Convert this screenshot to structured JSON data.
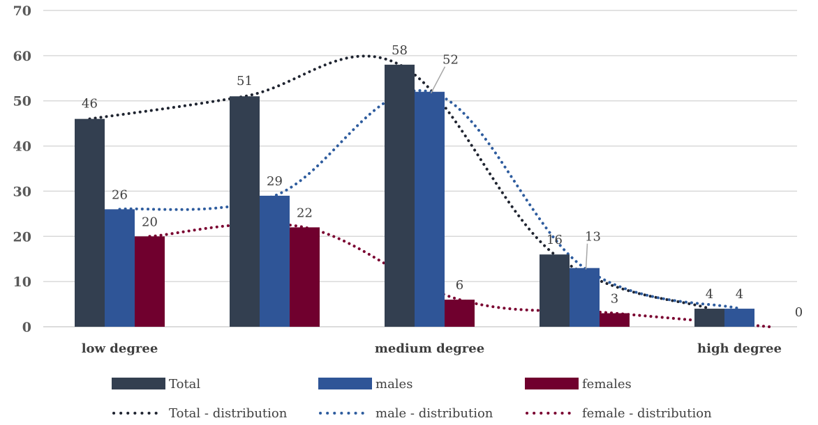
{
  "chart_data": {
    "type": "bar",
    "title": "",
    "xlabel": "",
    "ylabel": "",
    "ylim": [
      0,
      70
    ],
    "yticks": [
      0,
      10,
      20,
      30,
      40,
      50,
      60,
      70
    ],
    "grid": true,
    "legend_position": "bottom",
    "categories": [
      "low degree",
      "",
      "medium degree",
      "",
      "high degree"
    ],
    "series": [
      {
        "name": "Total",
        "kind": "bar",
        "color": "#333f50",
        "values": [
          46,
          51,
          58,
          16,
          4
        ]
      },
      {
        "name": "males",
        "kind": "bar",
        "color": "#2f5597",
        "values": [
          26,
          29,
          52,
          13,
          4
        ]
      },
      {
        "name": "females",
        "kind": "bar",
        "color": "#70002e",
        "values": [
          20,
          22,
          6,
          3,
          0
        ]
      }
    ],
    "trendlines": [
      {
        "name": "Total - distribution",
        "of": "Total",
        "style": "dotted",
        "color": "#1f2430"
      },
      {
        "name": "male - distribution",
        "of": "males",
        "style": "dotted",
        "color": "#2e5c9e"
      },
      {
        "name": "female - distribution",
        "of": "females",
        "style": "dotted",
        "color": "#7a0030"
      }
    ]
  }
}
